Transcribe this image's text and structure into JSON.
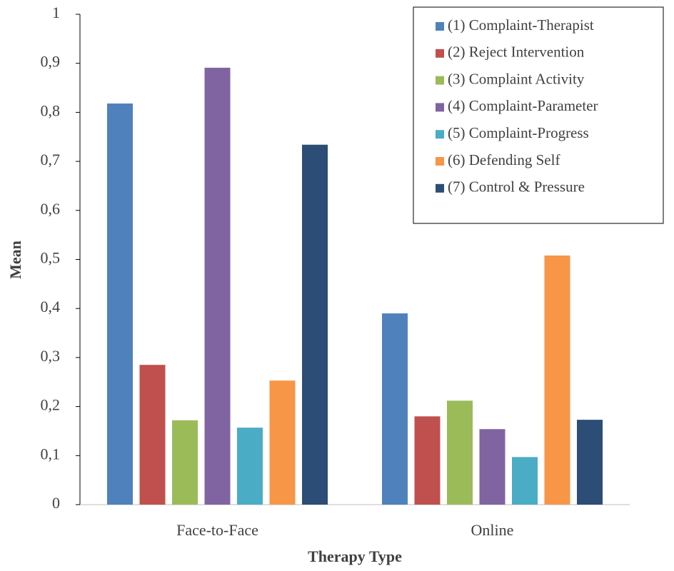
{
  "chart_data": {
    "type": "bar",
    "categories": [
      "Face-to-Face",
      "Online"
    ],
    "series": [
      {
        "name": "(1) Complaint-Therapist",
        "color": "#4f81bd",
        "values": [
          0.818,
          0.39
        ]
      },
      {
        "name": "(2) Reject Intervention",
        "color": "#c0504d",
        "values": [
          0.285,
          0.18
        ]
      },
      {
        "name": "(3) Complaint Activity",
        "color": "#9bbb59",
        "values": [
          0.172,
          0.212
        ]
      },
      {
        "name": "(4) Complaint-Parameter",
        "color": "#8064a2",
        "values": [
          0.891,
          0.154
        ]
      },
      {
        "name": "(5) Complaint-Progress",
        "color": "#4bacc6",
        "values": [
          0.157,
          0.097
        ]
      },
      {
        "name": "(6) Defending Self",
        "color": "#f79646",
        "values": [
          0.253,
          0.508
        ]
      },
      {
        "name": "(7) Control & Pressure",
        "color": "#2c4d75",
        "values": [
          0.734,
          0.173
        ]
      }
    ],
    "ylim": [
      0,
      1
    ],
    "yticks": [
      0,
      {
        "value": 0.1,
        "label": "0,1"
      },
      {
        "value": 0.2,
        "label": "0,2"
      },
      {
        "value": 0.3,
        "label": "0,3"
      },
      {
        "value": 0.4,
        "label": "0,4"
      },
      {
        "value": 0.5,
        "label": "0,5"
      },
      {
        "value": 0.6,
        "label": "0,6"
      },
      {
        "value": 0.7,
        "label": "0,7"
      },
      {
        "value": 0.8,
        "label": "0,8"
      },
      {
        "value": 0.9,
        "label": "0,9"
      },
      1
    ],
    "xlabel": "Therapy Type",
    "ylabel": "Mean",
    "grid": false,
    "legend": "top-right"
  }
}
